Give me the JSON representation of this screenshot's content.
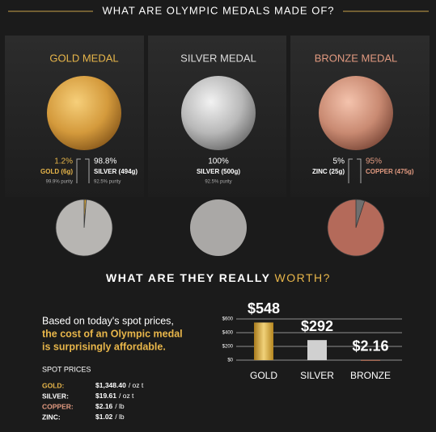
{
  "title": "WHAT ARE OLYMPIC MEDALS MADE OF?",
  "chart_data": [
    {
      "type": "pie",
      "title": "GOLD MEDAL",
      "title_color": "#e8b64a",
      "categories": [
        "GOLD (6g)",
        "SILVER (494g)"
      ],
      "values": [
        1.2,
        98.8
      ],
      "value_labels": [
        "1.2%",
        "98.8%"
      ],
      "notes": [
        "99.9% purity",
        "92.5% purity"
      ],
      "colors": [
        "#dcaa3c",
        "#b7b5b2"
      ],
      "label_colors": [
        "#e8b64a",
        "#ffffff"
      ]
    },
    {
      "type": "pie",
      "title": "SILVER MEDAL",
      "title_color": "#dddddd",
      "categories": [
        "SILVER (500g)"
      ],
      "values": [
        100
      ],
      "value_labels": [
        "100%"
      ],
      "notes": [
        "92.5% purity"
      ],
      "colors": [
        "#aaa8a6"
      ],
      "label_colors": [
        "#ffffff"
      ]
    },
    {
      "type": "pie",
      "title": "BRONZE MEDAL",
      "title_color": "#e29a80",
      "categories": [
        "ZINC (25g)",
        "COPPER (475g)"
      ],
      "values": [
        5,
        95
      ],
      "value_labels": [
        "5%",
        "95%"
      ],
      "colors": [
        "#6f6f6f",
        "#b46a5a"
      ],
      "label_colors": [
        "#ffffff",
        "#e29a80"
      ]
    },
    {
      "type": "bar",
      "title": "WHAT ARE THEY REALLY",
      "title_highlight": "WORTH?",
      "categories": [
        "GOLD",
        "SILVER",
        "BRONZE"
      ],
      "values": [
        548,
        292,
        2.16
      ],
      "value_labels": [
        "$548",
        "$292",
        "$2.16"
      ],
      "colors": [
        "#d4a72c",
        "#d0d0d0",
        "#b66a4f"
      ],
      "ylim": [
        0,
        600
      ],
      "yticks": [
        {
          "value": 0,
          "label": "$0"
        },
        {
          "value": 200,
          "label": "$200"
        },
        {
          "value": 400,
          "label": "$400"
        },
        {
          "value": 600,
          "label": "$600"
        }
      ],
      "grid": true
    }
  ],
  "intro": [
    "Based on today's spot prices,",
    "the cost of an Olympic medal",
    "is surprisingly affordable."
  ],
  "spot_prices": {
    "heading": "SPOT PRICES",
    "rows": [
      [
        "GOLD:",
        "$1,348.40",
        "/ oz t"
      ],
      [
        "SILVER:",
        "$19.61",
        "/ oz t"
      ],
      [
        "COPPER:",
        "$2.16",
        "/ lb"
      ],
      [
        "ZINC:",
        "$1.02",
        "/ lb"
      ]
    ]
  }
}
